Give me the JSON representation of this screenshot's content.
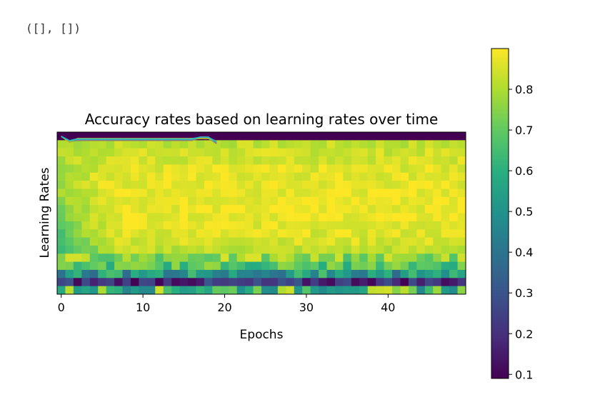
{
  "output_text": "([], [])",
  "chart_data": {
    "type": "heatmap",
    "title": "Accuracy rates based on learning rates over time",
    "xlabel": "Epochs",
    "ylabel": "Learning Rates",
    "xlim": [
      0,
      49
    ],
    "x_ticks": [
      "0",
      "10",
      "20",
      "30",
      "40"
    ],
    "y_ticks": [],
    "colorbar": {
      "colormap": "viridis",
      "range": [
        0.09,
        0.9
      ],
      "ticks": [
        "0.1",
        "0.2",
        "0.3",
        "0.4",
        "0.5",
        "0.6",
        "0.7",
        "0.8"
      ]
    },
    "epochs": 50,
    "rows": 20,
    "row_profile": [
      0.09,
      0.82,
      0.84,
      0.85,
      0.86,
      0.87,
      0.87,
      0.88,
      0.88,
      0.88,
      0.88,
      0.87,
      0.86,
      0.85,
      0.82,
      0.76,
      0.68,
      0.52,
      0.28,
      0.64
    ],
    "row_notes": "row 0 top (~0.09 constant); rows 1-14 mostly 0.80-0.89 with lower values at early epochs; rows 15-18 lower accuracy near bottom; row 18 ~0.10-0.30 (dark band); row 19 ~0.5-0.85 variable",
    "overlay_lines": "multiple thin colored lines near top, epochs 0-19, values ~0.8-0.85"
  }
}
